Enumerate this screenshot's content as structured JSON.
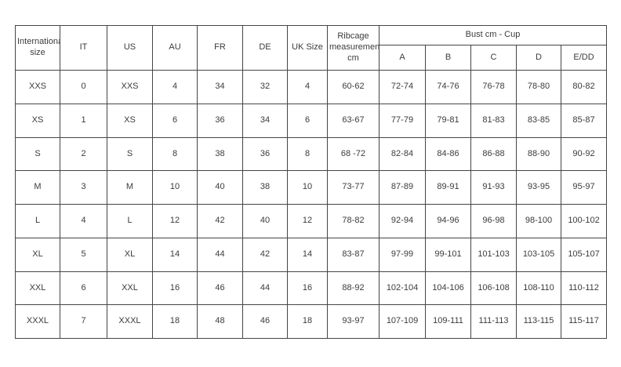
{
  "page": {
    "background": "#ffffff",
    "border_color": "#454545",
    "text_color": "#3b3b3b"
  },
  "table": {
    "group_header": "Bust cm - Cup",
    "headers": [
      "International size",
      "IT",
      "US",
      "AU",
      "FR",
      "DE",
      "UK Size",
      "Ribcage measurements cm"
    ],
    "cup_headers": [
      "A",
      "B",
      "C",
      "D",
      "E/DD"
    ]
  },
  "chart_data": {
    "type": "table",
    "title": "",
    "column_groups": [
      {
        "label": "Bust cm - Cup",
        "spans_columns": [
          "A",
          "B",
          "C",
          "D",
          "E/DD"
        ]
      }
    ],
    "columns": [
      "International size",
      "IT",
      "US",
      "AU",
      "FR",
      "DE",
      "UK Size",
      "Ribcage measurements cm",
      "A",
      "B",
      "C",
      "D",
      "E/DD"
    ],
    "rows": [
      [
        "XXS",
        "0",
        "XXS",
        "4",
        "34",
        "32",
        "4",
        "60-62",
        "72-74",
        "74-76",
        "76-78",
        "78-80",
        "80-82"
      ],
      [
        "XS",
        "1",
        "XS",
        "6",
        "36",
        "34",
        "6",
        "63-67",
        "77-79",
        "79-81",
        "81-83",
        "83-85",
        "85-87"
      ],
      [
        "S",
        "2",
        "S",
        "8",
        "38",
        "36",
        "8",
        "68 -72",
        "82-84",
        "84-86",
        "86-88",
        "88-90",
        "90-92"
      ],
      [
        "M",
        "3",
        "M",
        "10",
        "40",
        "38",
        "10",
        "73-77",
        "87-89",
        "89-91",
        "91-93",
        "93-95",
        "95-97"
      ],
      [
        "L",
        "4",
        "L",
        "12",
        "42",
        "40",
        "12",
        "78-82",
        "92-94",
        "94-96",
        "96-98",
        "98-100",
        "100-102"
      ],
      [
        "XL",
        "5",
        "XL",
        "14",
        "44",
        "42",
        "14",
        "83-87",
        "97-99",
        "99-101",
        "101-103",
        "103-105",
        "105-107"
      ],
      [
        "XXL",
        "6",
        "XXL",
        "16",
        "46",
        "44",
        "16",
        "88-92",
        "102-104",
        "104-106",
        "106-108",
        "108-110",
        "110-112"
      ],
      [
        "XXXL",
        "7",
        "XXXL",
        "18",
        "48",
        "46",
        "18",
        "93-97",
        "107-109",
        "109-111",
        "111-113",
        "113-115",
        "115-117"
      ]
    ]
  }
}
